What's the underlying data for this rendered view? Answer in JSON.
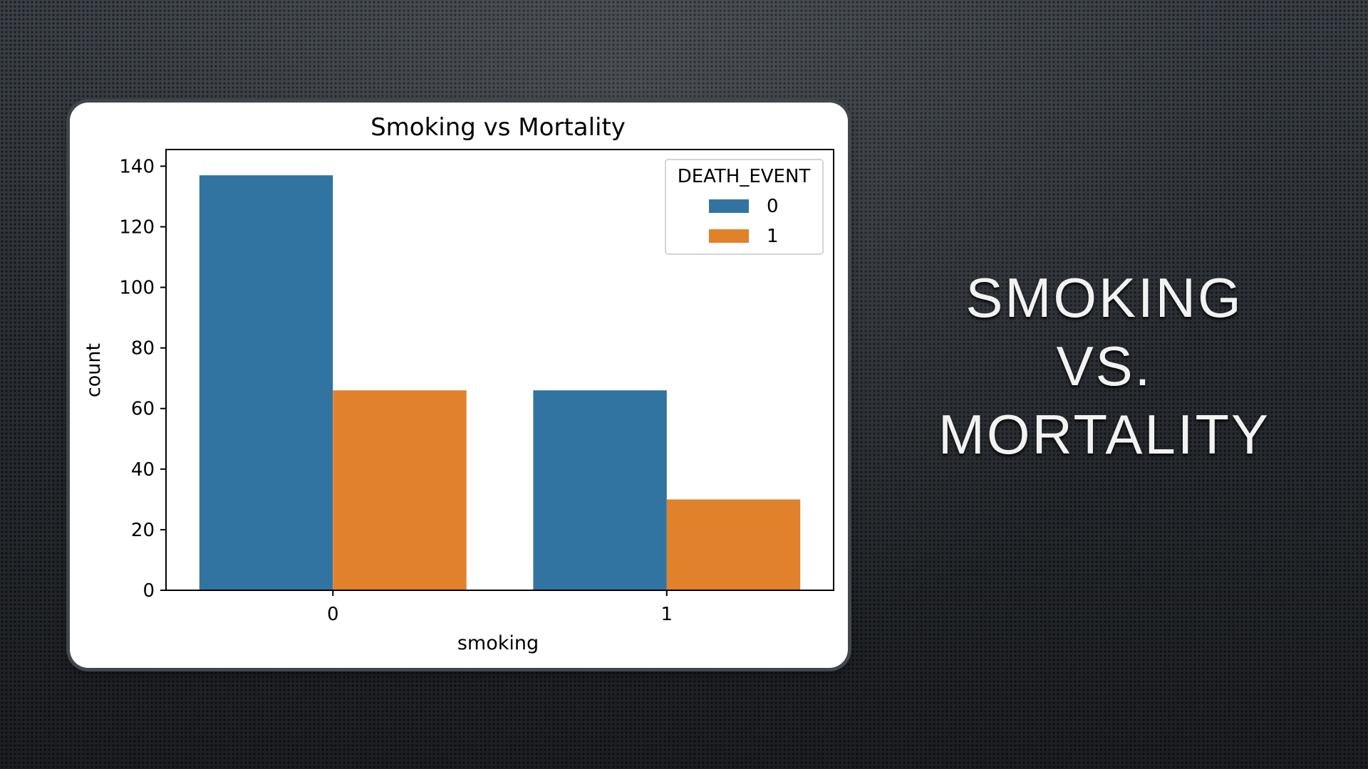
{
  "slide": {
    "title_lines": [
      "SMOKING",
      "VS.",
      "MORTALITY"
    ]
  },
  "colors": {
    "series_0": "#3274a1",
    "series_1": "#e1812c"
  },
  "chart_data": {
    "type": "bar",
    "title": "Smoking vs Mortality",
    "xlabel": "smoking",
    "ylabel": "count",
    "categories": [
      "0",
      "1"
    ],
    "series": [
      {
        "name": "0",
        "values": [
          137,
          66
        ]
      },
      {
        "name": "1",
        "values": [
          66,
          30
        ]
      }
    ],
    "legend_title": "DEATH_EVENT",
    "legend_position": "top-right",
    "ylim": [
      0,
      140
    ],
    "yticks": [
      0,
      20,
      40,
      60,
      80,
      100,
      120,
      140
    ],
    "grid": false
  }
}
